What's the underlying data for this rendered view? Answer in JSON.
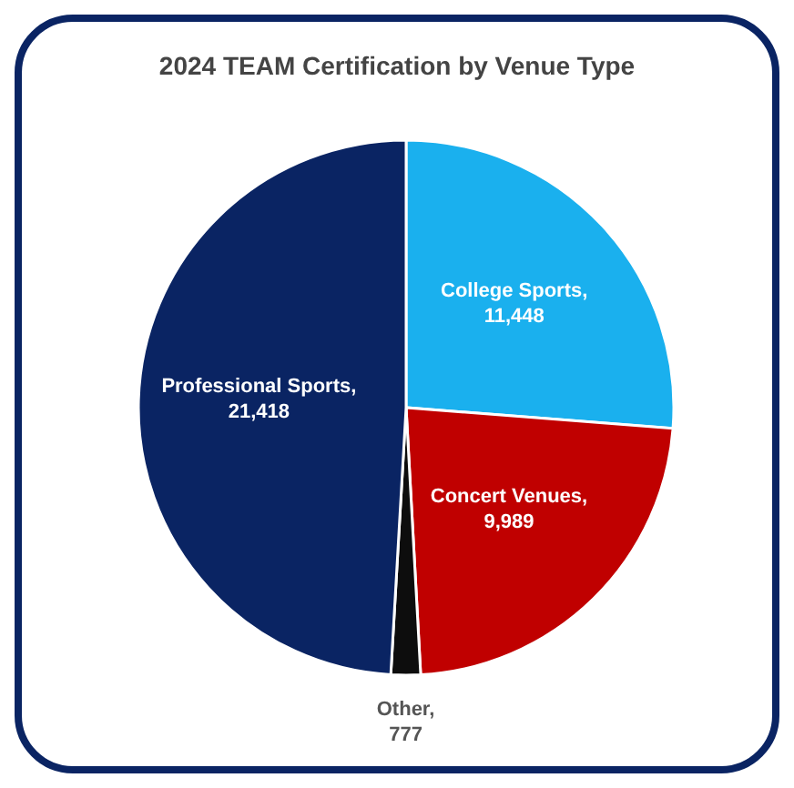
{
  "chart_data": {
    "type": "pie",
    "title": "2024 TEAM Certification by Venue Type",
    "categories": [
      "College Sports",
      "Concert Venues",
      "Other",
      "Professional Sports"
    ],
    "values": [
      11448,
      9989,
      777,
      21418
    ],
    "value_labels": [
      ", 11,448",
      ", 9,989",
      ", 777",
      ", 21,418"
    ],
    "colors": [
      "#1ab0ee",
      "#c00000",
      "#0d0d0d",
      "#0a2463"
    ],
    "legend": false
  }
}
